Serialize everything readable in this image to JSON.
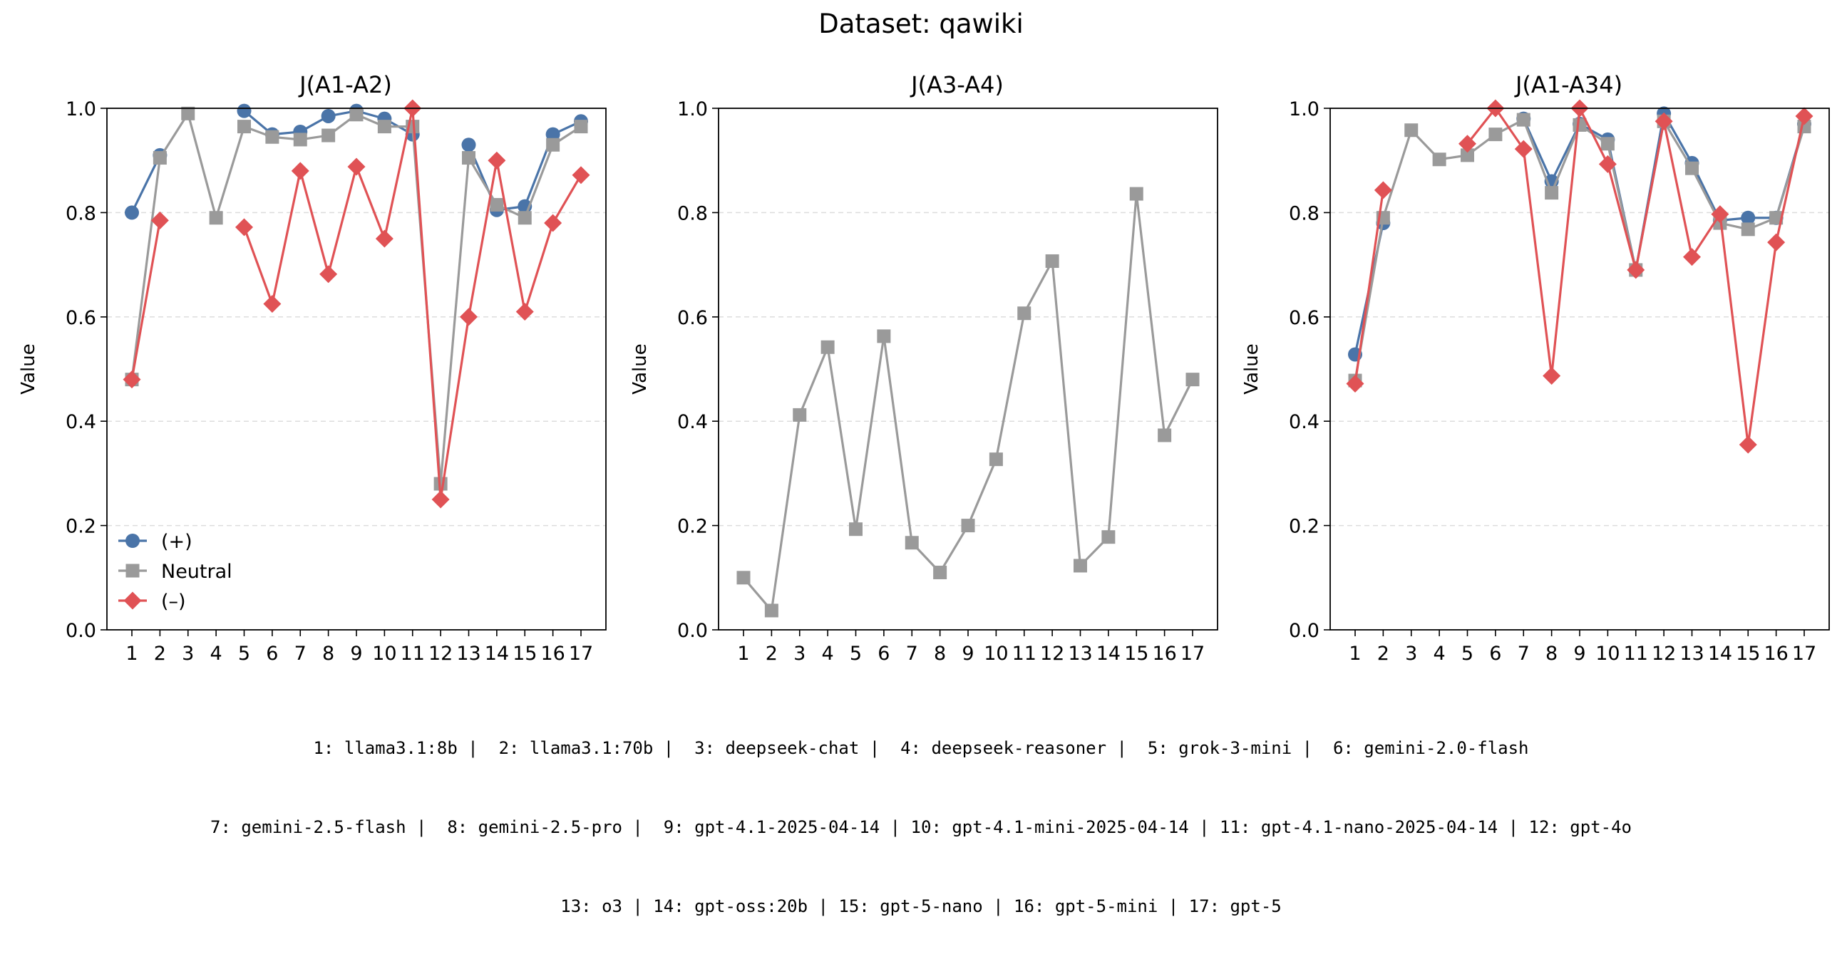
{
  "figure": {
    "title": "Dataset: qawiki"
  },
  "colors": {
    "plus": "#4a74a8",
    "neutral": "#9a9a9a",
    "minus": "#e05255"
  },
  "legend": {
    "placement": "lower-left",
    "entries": [
      "(+)",
      "Neutral",
      "(–)"
    ]
  },
  "chart_data": [
    {
      "type": "line",
      "title": "J(A1-A2)",
      "ylabel": "Value",
      "xlabel": "",
      "ylim": [
        0,
        1.0
      ],
      "yticks": [
        "0.0",
        "0.2",
        "0.4",
        "0.6",
        "0.8",
        "1.0"
      ],
      "categories": [
        "1",
        "2",
        "3",
        "4",
        "5",
        "6",
        "7",
        "8",
        "9",
        "10",
        "11",
        "12",
        "13",
        "14",
        "15",
        "16",
        "17"
      ],
      "grid": "y-dashed",
      "series": [
        {
          "name": "(+)",
          "marker": "circle",
          "color": "#4a74a8",
          "values": [
            0.8,
            0.91,
            null,
            null,
            0.995,
            0.95,
            0.955,
            0.985,
            0.995,
            0.98,
            0.95,
            null,
            0.93,
            0.805,
            0.812,
            0.95,
            0.975
          ]
        },
        {
          "name": "Neutral",
          "marker": "square",
          "color": "#9a9a9a",
          "values": [
            0.48,
            0.905,
            0.99,
            0.79,
            0.965,
            0.945,
            0.94,
            0.948,
            0.988,
            0.965,
            0.965,
            0.28,
            0.905,
            0.815,
            0.79,
            0.93,
            0.965
          ]
        },
        {
          "name": "(–)",
          "marker": "diamond",
          "color": "#e05255",
          "values": [
            0.48,
            0.785,
            null,
            null,
            0.772,
            0.625,
            0.88,
            0.682,
            0.888,
            0.75,
            1.0,
            0.25,
            0.6,
            0.9,
            0.61,
            0.78,
            0.872
          ]
        }
      ]
    },
    {
      "type": "line",
      "title": "J(A3-A4)",
      "ylabel": "Value",
      "xlabel": "",
      "ylim": [
        0,
        1.0
      ],
      "yticks": [
        "0.0",
        "0.2",
        "0.4",
        "0.6",
        "0.8",
        "1.0"
      ],
      "categories": [
        "1",
        "2",
        "3",
        "4",
        "5",
        "6",
        "7",
        "8",
        "9",
        "10",
        "11",
        "12",
        "13",
        "14",
        "15",
        "16",
        "17"
      ],
      "grid": "y-dashed",
      "series": [
        {
          "name": "Neutral",
          "marker": "square",
          "color": "#9a9a9a",
          "values": [
            0.1,
            0.037,
            0.412,
            0.542,
            0.193,
            0.563,
            0.167,
            0.11,
            0.2,
            0.327,
            0.607,
            0.707,
            0.123,
            0.178,
            0.836,
            0.373,
            0.48
          ]
        }
      ]
    },
    {
      "type": "line",
      "title": "J(A1-A34)",
      "ylabel": "Value",
      "xlabel": "",
      "ylim": [
        0,
        1.0
      ],
      "yticks": [
        "0.0",
        "0.2",
        "0.4",
        "0.6",
        "0.8",
        "1.0"
      ],
      "categories": [
        "1",
        "2",
        "3",
        "4",
        "5",
        "6",
        "7",
        "8",
        "9",
        "10",
        "11",
        "12",
        "13",
        "14",
        "15",
        "16",
        "17"
      ],
      "grid": "y-dashed",
      "series": [
        {
          "name": "(+)",
          "marker": "circle",
          "color": "#4a74a8",
          "values": [
            0.528,
            0.78,
            null,
            null,
            null,
            null,
            0.98,
            0.86,
            0.97,
            0.94,
            0.69,
            0.99,
            0.895,
            0.785,
            0.79,
            0.79,
            0.97
          ]
        },
        {
          "name": "Neutral",
          "marker": "square",
          "color": "#9a9a9a",
          "values": [
            0.478,
            0.79,
            0.958,
            0.902,
            0.91,
            0.95,
            0.978,
            0.838,
            0.968,
            0.932,
            0.69,
            0.975,
            0.885,
            0.78,
            0.768,
            0.79,
            0.965
          ]
        },
        {
          "name": "(–)",
          "marker": "diamond",
          "color": "#e05255",
          "values": [
            0.472,
            0.843,
            null,
            null,
            0.932,
            1.0,
            0.922,
            0.487,
            1.0,
            0.893,
            0.69,
            0.975,
            0.715,
            0.797,
            0.355,
            0.743,
            0.985
          ]
        }
      ]
    }
  ],
  "footer": {
    "line1": "1: llama3.1:8b |  2: llama3.1:70b |  3: deepseek-chat |  4: deepseek-reasoner |  5: grok-3-mini |  6: gemini-2.0-flash",
    "line2": "7: gemini-2.5-flash |  8: gemini-2.5-pro |  9: gpt-4.1-2025-04-14 | 10: gpt-4.1-mini-2025-04-14 | 11: gpt-4.1-nano-2025-04-14 | 12: gpt-4o",
    "line3": "13: o3 | 14: gpt-oss:20b | 15: gpt-5-nano | 16: gpt-5-mini | 17: gpt-5"
  }
}
